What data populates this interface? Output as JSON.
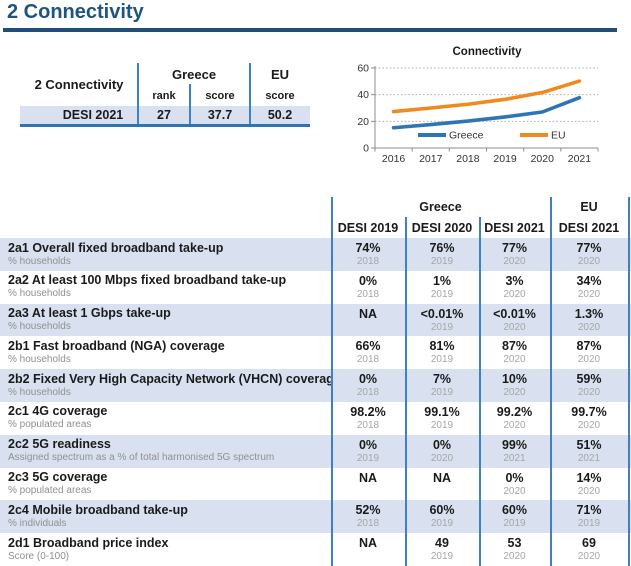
{
  "page": {
    "title": "2 Connectivity"
  },
  "colors": {
    "title_blue": "#1F4E79",
    "table_line_blue": "#3E80C4",
    "summary_bottom_border": "#2E74B5",
    "row_shade": "#D9E1F0",
    "greece_line": "#2E75B6",
    "eu_line": "#F18A1E",
    "muted_gray": "#A6A6A6"
  },
  "summary_table": {
    "corner_label": "2 Connectivity",
    "greece_header": "Greece",
    "eu_header": "EU",
    "rank_header": "rank",
    "score_header": "score",
    "eu_score_header": "score",
    "row_label": "DESI 2021",
    "rank": "27",
    "greece_score": "37.7",
    "eu_score": "50.2"
  },
  "chart_data": {
    "type": "line",
    "title": "Connectivity",
    "x": [
      "2016",
      "2017",
      "2018",
      "2019",
      "2020",
      "2021"
    ],
    "series": [
      {
        "name": "Greece",
        "color": "#2E75B6",
        "values": [
          15.2,
          17.6,
          20.2,
          23.3,
          27.0,
          37.7
        ]
      },
      {
        "name": "EU",
        "color": "#F18A1E",
        "values": [
          27.3,
          30.0,
          32.8,
          36.5,
          41.6,
          50.2
        ]
      }
    ],
    "ylim": [
      0,
      60
    ],
    "yticks": [
      0,
      20,
      40,
      60
    ],
    "grid": "horizontal-dotted",
    "legend_position": "inside-bottom"
  },
  "main_table": {
    "greece_header": "Greece",
    "eu_header": "EU",
    "col_headers": [
      "DESI 2019",
      "DESI 2020",
      "DESI 2021",
      "DESI 2021"
    ],
    "rows": [
      {
        "label": "2a1 Overall fixed broadband take-up",
        "sub": "% households",
        "shaded": true,
        "cells": [
          {
            "v": "74%",
            "y": "2018"
          },
          {
            "v": "76%",
            "y": "2019"
          },
          {
            "v": "77%",
            "y": "2020"
          },
          {
            "v": "77%",
            "y": "2020"
          }
        ]
      },
      {
        "label": "2a2 At least 100 Mbps fixed broadband take-up",
        "sub": "% households",
        "shaded": false,
        "cells": [
          {
            "v": "0%",
            "y": "2018"
          },
          {
            "v": "1%",
            "y": "2019"
          },
          {
            "v": "3%",
            "y": "2020"
          },
          {
            "v": "34%",
            "y": "2020"
          }
        ]
      },
      {
        "label": "2a3 At least 1 Gbps take-up",
        "sub": "% households",
        "shaded": true,
        "cells": [
          {
            "v": "NA",
            "y": ""
          },
          {
            "v": "<0.01%",
            "y": "2019"
          },
          {
            "v": "<0.01%",
            "y": "2020"
          },
          {
            "v": "1.3%",
            "y": "2020"
          }
        ]
      },
      {
        "label": "2b1 Fast broadband (NGA) coverage",
        "sub": "% households",
        "shaded": false,
        "cells": [
          {
            "v": "66%",
            "y": "2018"
          },
          {
            "v": "81%",
            "y": "2019"
          },
          {
            "v": "87%",
            "y": "2020"
          },
          {
            "v": "87%",
            "y": "2020"
          }
        ]
      },
      {
        "label": "2b2 Fixed Very High Capacity Network (VHCN) coverage",
        "sub": "% households",
        "shaded": true,
        "cells": [
          {
            "v": "0%",
            "y": "2018"
          },
          {
            "v": "7%",
            "y": "2019"
          },
          {
            "v": "10%",
            "y": "2020"
          },
          {
            "v": "59%",
            "y": "2020"
          }
        ]
      },
      {
        "label": "2c1 4G coverage",
        "sub": "% populated areas",
        "shaded": false,
        "cells": [
          {
            "v": "98.2%",
            "y": "2018"
          },
          {
            "v": "99.1%",
            "y": "2019"
          },
          {
            "v": "99.2%",
            "y": "2020"
          },
          {
            "v": "99.7%",
            "y": "2020"
          }
        ]
      },
      {
        "label": "2c2 5G readiness",
        "sub": "Assigned spectrum as a % of total harmonised 5G spectrum",
        "shaded": true,
        "cells": [
          {
            "v": "0%",
            "y": "2019"
          },
          {
            "v": "0%",
            "y": "2020"
          },
          {
            "v": "99%",
            "y": "2021"
          },
          {
            "v": "51%",
            "y": "2021"
          }
        ]
      },
      {
        "label": "2c3 5G coverage",
        "sub": "% populated areas",
        "shaded": false,
        "cells": [
          {
            "v": "NA",
            "y": ""
          },
          {
            "v": "NA",
            "y": ""
          },
          {
            "v": "0%",
            "y": "2020"
          },
          {
            "v": "14%",
            "y": "2020"
          }
        ]
      },
      {
        "label": "2c4 Mobile broadband take-up",
        "sub": "% individuals",
        "shaded": true,
        "cells": [
          {
            "v": "52%",
            "y": "2018"
          },
          {
            "v": "60%",
            "y": "2019"
          },
          {
            "v": "60%",
            "y": "2019"
          },
          {
            "v": "71%",
            "y": "2019"
          }
        ]
      },
      {
        "label": "2d1 Broadband price index",
        "sub": "Score (0-100)",
        "shaded": false,
        "cells": [
          {
            "v": "NA",
            "y": ""
          },
          {
            "v": "49",
            "y": "2019"
          },
          {
            "v": "53",
            "y": "2020"
          },
          {
            "v": "69",
            "y": "2020"
          }
        ]
      }
    ]
  }
}
